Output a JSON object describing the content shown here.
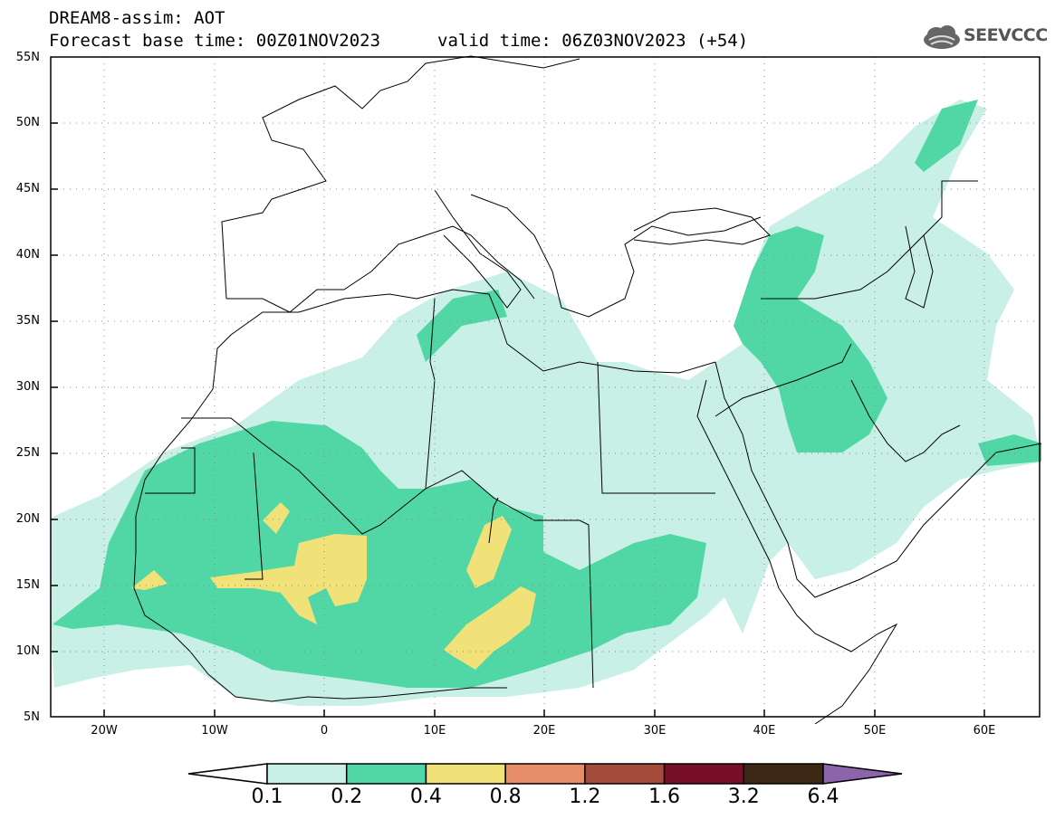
{
  "header": {
    "title": "DREAM8-assim: AOT",
    "base_time": "Forecast base time: 00Z01NOV2023",
    "valid_time": "valid time: 06Z03NOV2023 (+54)"
  },
  "logo": {
    "text": "SEEVCCC",
    "icon": "cloud-icon"
  },
  "map": {
    "lat_labels": [
      "55N",
      "50N",
      "45N",
      "40N",
      "35N",
      "30N",
      "25N",
      "20N",
      "15N",
      "10N",
      "5N"
    ],
    "lon_labels": [
      "20W",
      "10W",
      "0",
      "10E",
      "20E",
      "30E",
      "40E",
      "50E",
      "60E"
    ],
    "lat_range": [
      5,
      55
    ],
    "lon_range": [
      -25,
      65
    ]
  },
  "colorbar": {
    "labels": [
      "0.1",
      "0.2",
      "0.4",
      "0.8",
      "1.2",
      "1.6",
      "3.2",
      "6.4"
    ],
    "colors": [
      "#ffffff",
      "#c8f0e6",
      "#50d7a5",
      "#f0e178",
      "#e68c69",
      "#a54b3c",
      "#780f28",
      "#3c2814",
      "#8c64aa"
    ]
  }
}
